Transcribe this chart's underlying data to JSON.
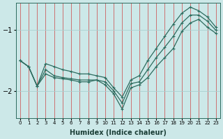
{
  "xlabel": "Humidex (Indice chaleur)",
  "bg_color": "#cce8e8",
  "line_color": "#2d6b5e",
  "grid_color": "#aacfcf",
  "xlim": [
    -0.5,
    23.5
  ],
  "ylim": [
    -2.45,
    -0.55
  ],
  "xticks": [
    0,
    1,
    2,
    3,
    4,
    5,
    6,
    7,
    8,
    9,
    10,
    11,
    12,
    13,
    14,
    15,
    16,
    17,
    18,
    19,
    20,
    21,
    22,
    23
  ],
  "yticks": [
    -2,
    -1
  ],
  "x": [
    0,
    1,
    2,
    3,
    4,
    5,
    6,
    7,
    8,
    9,
    10,
    11,
    12,
    13,
    14,
    15,
    16,
    17,
    18,
    19,
    20,
    21,
    22,
    23
  ],
  "y_curve": [
    -1.5,
    -1.6,
    -1.92,
    -1.65,
    -1.75,
    -1.78,
    -1.8,
    -1.82,
    -1.82,
    -1.82,
    -1.85,
    -2.0,
    -2.2,
    -1.88,
    -1.85,
    -1.65,
    -1.45,
    -1.28,
    -1.1,
    -0.88,
    -0.75,
    -0.75,
    -0.85,
    -1.0
  ],
  "y_trend1": [
    -1.5,
    -1.6,
    -1.92,
    -1.55,
    -1.6,
    -1.65,
    -1.68,
    -1.72,
    -1.72,
    -1.75,
    -1.78,
    -1.95,
    -2.1,
    -1.82,
    -1.75,
    -1.5,
    -1.3,
    -1.1,
    -0.9,
    -0.72,
    -0.62,
    -0.68,
    -0.78,
    -0.95
  ],
  "y_trend2": [
    -1.5,
    -1.6,
    -1.92,
    -1.72,
    -1.78,
    -1.8,
    -1.82,
    -1.85,
    -1.85,
    -1.82,
    -1.9,
    -2.05,
    -2.3,
    -1.95,
    -1.9,
    -1.78,
    -1.6,
    -1.45,
    -1.3,
    -1.02,
    -0.88,
    -0.82,
    -0.95,
    -1.05
  ]
}
